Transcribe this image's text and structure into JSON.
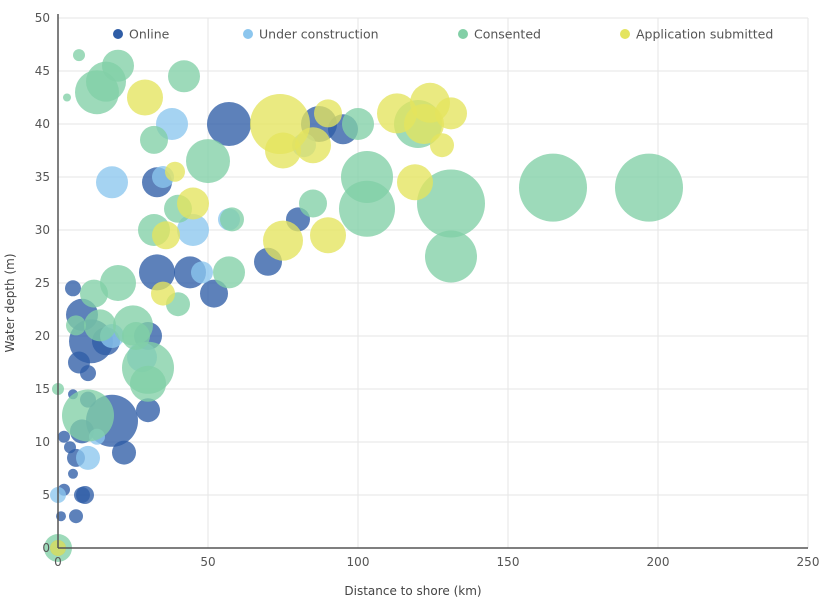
{
  "chart_data": {
    "type": "scatter",
    "xlabel": "Distance to shore (km)",
    "ylabel": "Water depth (m)",
    "xlim": [
      0,
      250
    ],
    "ylim": [
      0,
      50
    ],
    "xticks": [
      "0",
      "50",
      "100",
      "150",
      "200",
      "250"
    ],
    "yticks": [
      "0",
      "5",
      "10",
      "15",
      "20",
      "25",
      "30",
      "35",
      "40",
      "45",
      "50"
    ],
    "grid": true,
    "legend_position": "top",
    "series": [
      {
        "name": "Online",
        "color": "#2f5da6",
        "points": [
          {
            "x": 0,
            "y": 0,
            "r": 8
          },
          {
            "x": 1,
            "y": 3,
            "r": 5
          },
          {
            "x": 2,
            "y": 5.5,
            "r": 6
          },
          {
            "x": 2,
            "y": 10.5,
            "r": 6
          },
          {
            "x": 4,
            "y": 9.5,
            "r": 6
          },
          {
            "x": 5,
            "y": 7,
            "r": 5
          },
          {
            "x": 6,
            "y": 3,
            "r": 7
          },
          {
            "x": 6,
            "y": 8.5,
            "r": 9
          },
          {
            "x": 8,
            "y": 11,
            "r": 12
          },
          {
            "x": 8,
            "y": 5,
            "r": 8
          },
          {
            "x": 9,
            "y": 5,
            "r": 9
          },
          {
            "x": 10,
            "y": 14,
            "r": 8
          },
          {
            "x": 5,
            "y": 14.5,
            "r": 5
          },
          {
            "x": 10,
            "y": 16.5,
            "r": 8
          },
          {
            "x": 7,
            "y": 17.5,
            "r": 11
          },
          {
            "x": 11,
            "y": 19.5,
            "r": 22
          },
          {
            "x": 16,
            "y": 19.5,
            "r": 14
          },
          {
            "x": 8,
            "y": 22,
            "r": 16
          },
          {
            "x": 5,
            "y": 24.5,
            "r": 8
          },
          {
            "x": 18,
            "y": 12,
            "r": 26
          },
          {
            "x": 22,
            "y": 9,
            "r": 12
          },
          {
            "x": 30,
            "y": 13,
            "r": 12
          },
          {
            "x": 30,
            "y": 20,
            "r": 14
          },
          {
            "x": 33,
            "y": 26,
            "r": 18
          },
          {
            "x": 44,
            "y": 26,
            "r": 16
          },
          {
            "x": 52,
            "y": 24,
            "r": 14
          },
          {
            "x": 33,
            "y": 34.5,
            "r": 15
          },
          {
            "x": 57,
            "y": 40,
            "r": 22
          },
          {
            "x": 70,
            "y": 27,
            "r": 14
          },
          {
            "x": 80,
            "y": 31,
            "r": 12
          },
          {
            "x": 87,
            "y": 40,
            "r": 18
          },
          {
            "x": 95,
            "y": 39.5,
            "r": 15
          }
        ]
      },
      {
        "name": "Under construction",
        "color": "#8cc6ee",
        "points": [
          {
            "x": 0,
            "y": 5,
            "r": 8
          },
          {
            "x": 10,
            "y": 8.5,
            "r": 12
          },
          {
            "x": 13,
            "y": 10.5,
            "r": 8
          },
          {
            "x": 18,
            "y": 20,
            "r": 12
          },
          {
            "x": 28,
            "y": 18,
            "r": 15
          },
          {
            "x": 18,
            "y": 34.5,
            "r": 16
          },
          {
            "x": 38,
            "y": 40,
            "r": 16
          },
          {
            "x": 35,
            "y": 35,
            "r": 11
          },
          {
            "x": 45,
            "y": 30,
            "r": 16
          },
          {
            "x": 48,
            "y": 26,
            "r": 11
          },
          {
            "x": 57,
            "y": 31,
            "r": 11
          },
          {
            "x": 82,
            "y": 38,
            "r": 12
          }
        ]
      },
      {
        "name": "Consented",
        "color": "#82cfa6",
        "points": [
          {
            "x": 0,
            "y": 0,
            "r": 14
          },
          {
            "x": 0,
            "y": 15,
            "r": 6
          },
          {
            "x": 3,
            "y": 42.5,
            "r": 4
          },
          {
            "x": 7,
            "y": 46.5,
            "r": 6
          },
          {
            "x": 6,
            "y": 21,
            "r": 10
          },
          {
            "x": 12,
            "y": 24,
            "r": 14
          },
          {
            "x": 14,
            "y": 21,
            "r": 16
          },
          {
            "x": 20,
            "y": 25,
            "r": 18
          },
          {
            "x": 25,
            "y": 21,
            "r": 20
          },
          {
            "x": 26,
            "y": 20,
            "r": 14
          },
          {
            "x": 30,
            "y": 17,
            "r": 26
          },
          {
            "x": 10,
            "y": 12.5,
            "r": 26
          },
          {
            "x": 30,
            "y": 15.5,
            "r": 18
          },
          {
            "x": 32,
            "y": 30,
            "r": 16
          },
          {
            "x": 40,
            "y": 32,
            "r": 14
          },
          {
            "x": 40,
            "y": 23,
            "r": 12
          },
          {
            "x": 50,
            "y": 36.5,
            "r": 22
          },
          {
            "x": 57,
            "y": 26,
            "r": 16
          },
          {
            "x": 58,
            "y": 31,
            "r": 12
          },
          {
            "x": 32,
            "y": 38.5,
            "r": 14
          },
          {
            "x": 42,
            "y": 44.5,
            "r": 16
          },
          {
            "x": 13,
            "y": 43,
            "r": 22
          },
          {
            "x": 16,
            "y": 44,
            "r": 20
          },
          {
            "x": 20,
            "y": 45.5,
            "r": 16
          },
          {
            "x": 85,
            "y": 32.5,
            "r": 14
          },
          {
            "x": 100,
            "y": 40,
            "r": 16
          },
          {
            "x": 103,
            "y": 35,
            "r": 26
          },
          {
            "x": 103,
            "y": 32,
            "r": 28
          },
          {
            "x": 120,
            "y": 40,
            "r": 24
          },
          {
            "x": 131,
            "y": 32.5,
            "r": 34
          },
          {
            "x": 131,
            "y": 27.5,
            "r": 26
          },
          {
            "x": 165,
            "y": 34,
            "r": 34
          },
          {
            "x": 197,
            "y": 34,
            "r": 34
          }
        ]
      },
      {
        "name": "Application submitted",
        "color": "#e4e45e",
        "points": [
          {
            "x": 0,
            "y": 0,
            "r": 8
          },
          {
            "x": 29,
            "y": 42.5,
            "r": 18
          },
          {
            "x": 35,
            "y": 24,
            "r": 12
          },
          {
            "x": 36,
            "y": 29.5,
            "r": 14
          },
          {
            "x": 39,
            "y": 35.5,
            "r": 10
          },
          {
            "x": 45,
            "y": 32.5,
            "r": 16
          },
          {
            "x": 74,
            "y": 40,
            "r": 30
          },
          {
            "x": 75,
            "y": 37.5,
            "r": 18
          },
          {
            "x": 75,
            "y": 29,
            "r": 20
          },
          {
            "x": 85,
            "y": 38,
            "r": 18
          },
          {
            "x": 90,
            "y": 29.5,
            "r": 18
          },
          {
            "x": 90,
            "y": 41,
            "r": 14
          },
          {
            "x": 113,
            "y": 41,
            "r": 20
          },
          {
            "x": 119,
            "y": 34.5,
            "r": 18
          },
          {
            "x": 122,
            "y": 40,
            "r": 20
          },
          {
            "x": 124,
            "y": 42,
            "r": 20
          },
          {
            "x": 128,
            "y": 38,
            "r": 12
          },
          {
            "x": 131,
            "y": 41,
            "r": 16
          }
        ]
      }
    ]
  }
}
